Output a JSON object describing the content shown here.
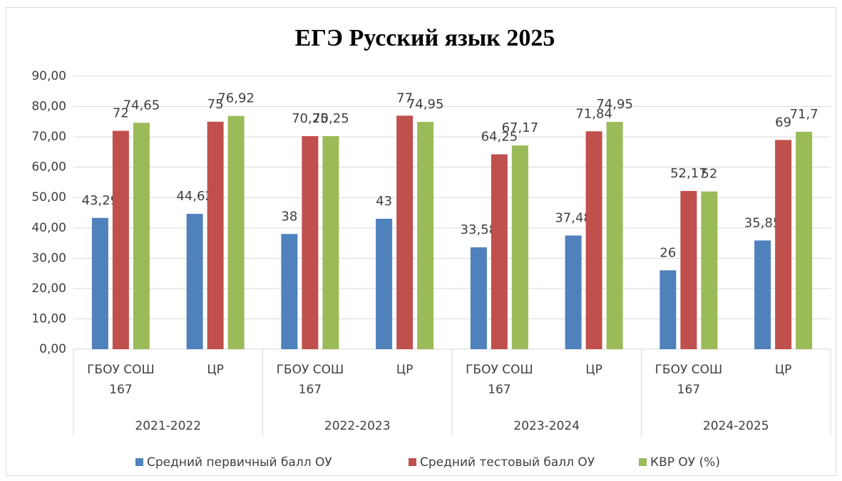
{
  "chart_data": {
    "type": "bar",
    "title": "ЕГЭ Русский язык 2025",
    "categories": [
      "ГБОУ СОШ 167",
      "ЦР",
      "ГБОУ СОШ 167",
      "ЦР",
      "ГБОУ СОШ 167",
      "ЦР",
      "ГБОУ СОШ 167",
      "ЦР"
    ],
    "groups": [
      "2021-2022",
      "2022-2023",
      "2023-2024",
      "2024-2025"
    ],
    "series": [
      {
        "name": "Средний первичный балл ОУ",
        "color": "#4f81bd",
        "values": [
          43.29,
          44.62,
          38,
          43,
          33.58,
          37.48,
          26,
          35.85
        ],
        "value_labels": [
          "43,29",
          "44,62",
          "38",
          "43",
          "33,58",
          "37,48",
          "26",
          "35,85"
        ]
      },
      {
        "name": "Средний тестовый балл ОУ",
        "color": "#c0504d",
        "values": [
          72,
          75,
          70.25,
          77,
          64.25,
          71.84,
          52.17,
          69
        ],
        "value_labels": [
          "72",
          "75",
          "70,25",
          "77",
          "64,25",
          "71,84",
          "52,17",
          "69"
        ]
      },
      {
        "name": "КВР ОУ (%)",
        "color": "#9bbb59",
        "values": [
          74.65,
          76.92,
          70.25,
          74.95,
          67.17,
          74.95,
          52,
          71.7
        ],
        "value_labels": [
          "74,65",
          "76,92",
          "70,25",
          "74,95",
          "67,17",
          "74,95",
          "52",
          "71,7"
        ]
      }
    ],
    "ylim": [
      0,
      90
    ],
    "yticks": [
      {
        "value": 0,
        "label": "0,00"
      },
      {
        "value": 10,
        "label": "10,00"
      },
      {
        "value": 20,
        "label": "20,00"
      },
      {
        "value": 30,
        "label": "30,00"
      },
      {
        "value": 40,
        "label": "40,00"
      },
      {
        "value": 50,
        "label": "50,00"
      },
      {
        "value": 60,
        "label": "60,00"
      },
      {
        "value": 70,
        "label": "70,00"
      },
      {
        "value": 80,
        "label": "80,00"
      },
      {
        "value": 90,
        "label": "90,00"
      }
    ],
    "grid": true
  }
}
